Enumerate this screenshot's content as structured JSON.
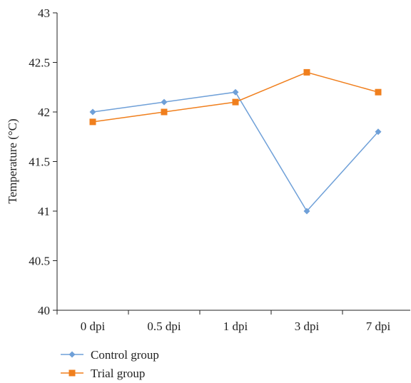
{
  "chart_data": {
    "type": "line",
    "categories": [
      "0 dpi",
      "0.5 dpi",
      "1 dpi",
      "3 dpi",
      "7 dpi"
    ],
    "series": [
      {
        "name": "Control group",
        "values": [
          42.0,
          42.1,
          42.2,
          41.0,
          41.8
        ],
        "color": "#6fa0d8",
        "marker": "diamond"
      },
      {
        "name": "Trial group",
        "values": [
          41.9,
          42.0,
          42.1,
          42.4,
          42.2
        ],
        "color": "#f07f1d",
        "marker": "square"
      }
    ],
    "ylabel": "Temperature (°C)",
    "xlabel": "",
    "ylim": [
      40,
      43
    ],
    "y_ticks": [
      40,
      40.5,
      41,
      41.5,
      42,
      42.5,
      43
    ],
    "y_tick_labels": [
      "40",
      "40.5",
      "41",
      "41.5",
      "42",
      "42.5",
      "43"
    ],
    "grid": false,
    "legend_position": "bottom-left"
  }
}
